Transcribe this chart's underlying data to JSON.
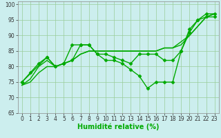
{
  "series": [
    {
      "x": [
        0,
        1,
        2,
        3,
        4,
        5,
        6,
        7,
        8,
        9,
        10,
        11,
        12,
        13,
        14,
        15,
        16,
        17,
        18,
        19,
        20,
        21,
        22,
        23
      ],
      "y": [
        75,
        78,
        81,
        83,
        80,
        81,
        87,
        87,
        87,
        84,
        82,
        82,
        81,
        79,
        77,
        73,
        75,
        75,
        75,
        85,
        91,
        95,
        97,
        97
      ],
      "marker": "D",
      "markersize": 2.5,
      "linewidth": 1.0
    },
    {
      "x": [
        0,
        1,
        2,
        3,
        4,
        5,
        6,
        7,
        8,
        9,
        10,
        11,
        12,
        13,
        14,
        15,
        16,
        17,
        18,
        19,
        20,
        21,
        22,
        23
      ],
      "y": [
        74,
        76,
        80,
        82,
        80,
        81,
        82,
        84,
        85,
        85,
        85,
        85,
        85,
        85,
        85,
        85,
        85,
        86,
        86,
        87,
        90,
        93,
        96,
        97
      ],
      "marker": null,
      "markersize": 0,
      "linewidth": 1.0
    },
    {
      "x": [
        0,
        1,
        2,
        3,
        4,
        5,
        6,
        7,
        8,
        9,
        10,
        11,
        12,
        13,
        14,
        15,
        16,
        17,
        18,
        19,
        20,
        21,
        22,
        23
      ],
      "y": [
        74,
        75,
        78,
        80,
        80,
        81,
        82,
        84,
        85,
        85,
        85,
        85,
        85,
        85,
        85,
        85,
        85,
        86,
        86,
        88,
        90,
        93,
        96,
        97
      ],
      "marker": null,
      "markersize": 0,
      "linewidth": 1.0
    },
    {
      "x": [
        0,
        3,
        4,
        5,
        6,
        7,
        8,
        9,
        10,
        11,
        12,
        13,
        14,
        15,
        16,
        17,
        18,
        19,
        20,
        21,
        22,
        23
      ],
      "y": [
        75,
        83,
        80,
        81,
        82,
        87,
        87,
        84,
        84,
        83,
        82,
        81,
        84,
        84,
        84,
        82,
        82,
        85,
        92,
        95,
        96,
        96
      ],
      "marker": "D",
      "markersize": 2.5,
      "linewidth": 1.0
    }
  ],
  "xlabel": "Humidité relative (%)",
  "xlim": [
    -0.5,
    23.5
  ],
  "ylim": [
    65,
    101
  ],
  "yticks": [
    65,
    70,
    75,
    80,
    85,
    90,
    95,
    100
  ],
  "xticks": [
    0,
    1,
    2,
    3,
    4,
    5,
    6,
    7,
    8,
    9,
    10,
    11,
    12,
    13,
    14,
    15,
    16,
    17,
    18,
    19,
    20,
    21,
    22,
    23
  ],
  "grid_color": "#99cc99",
  "bg_color": "#cceeee",
  "line_color": "#00aa00",
  "xlabel_fontsize": 7,
  "tick_fontsize": 5.5
}
